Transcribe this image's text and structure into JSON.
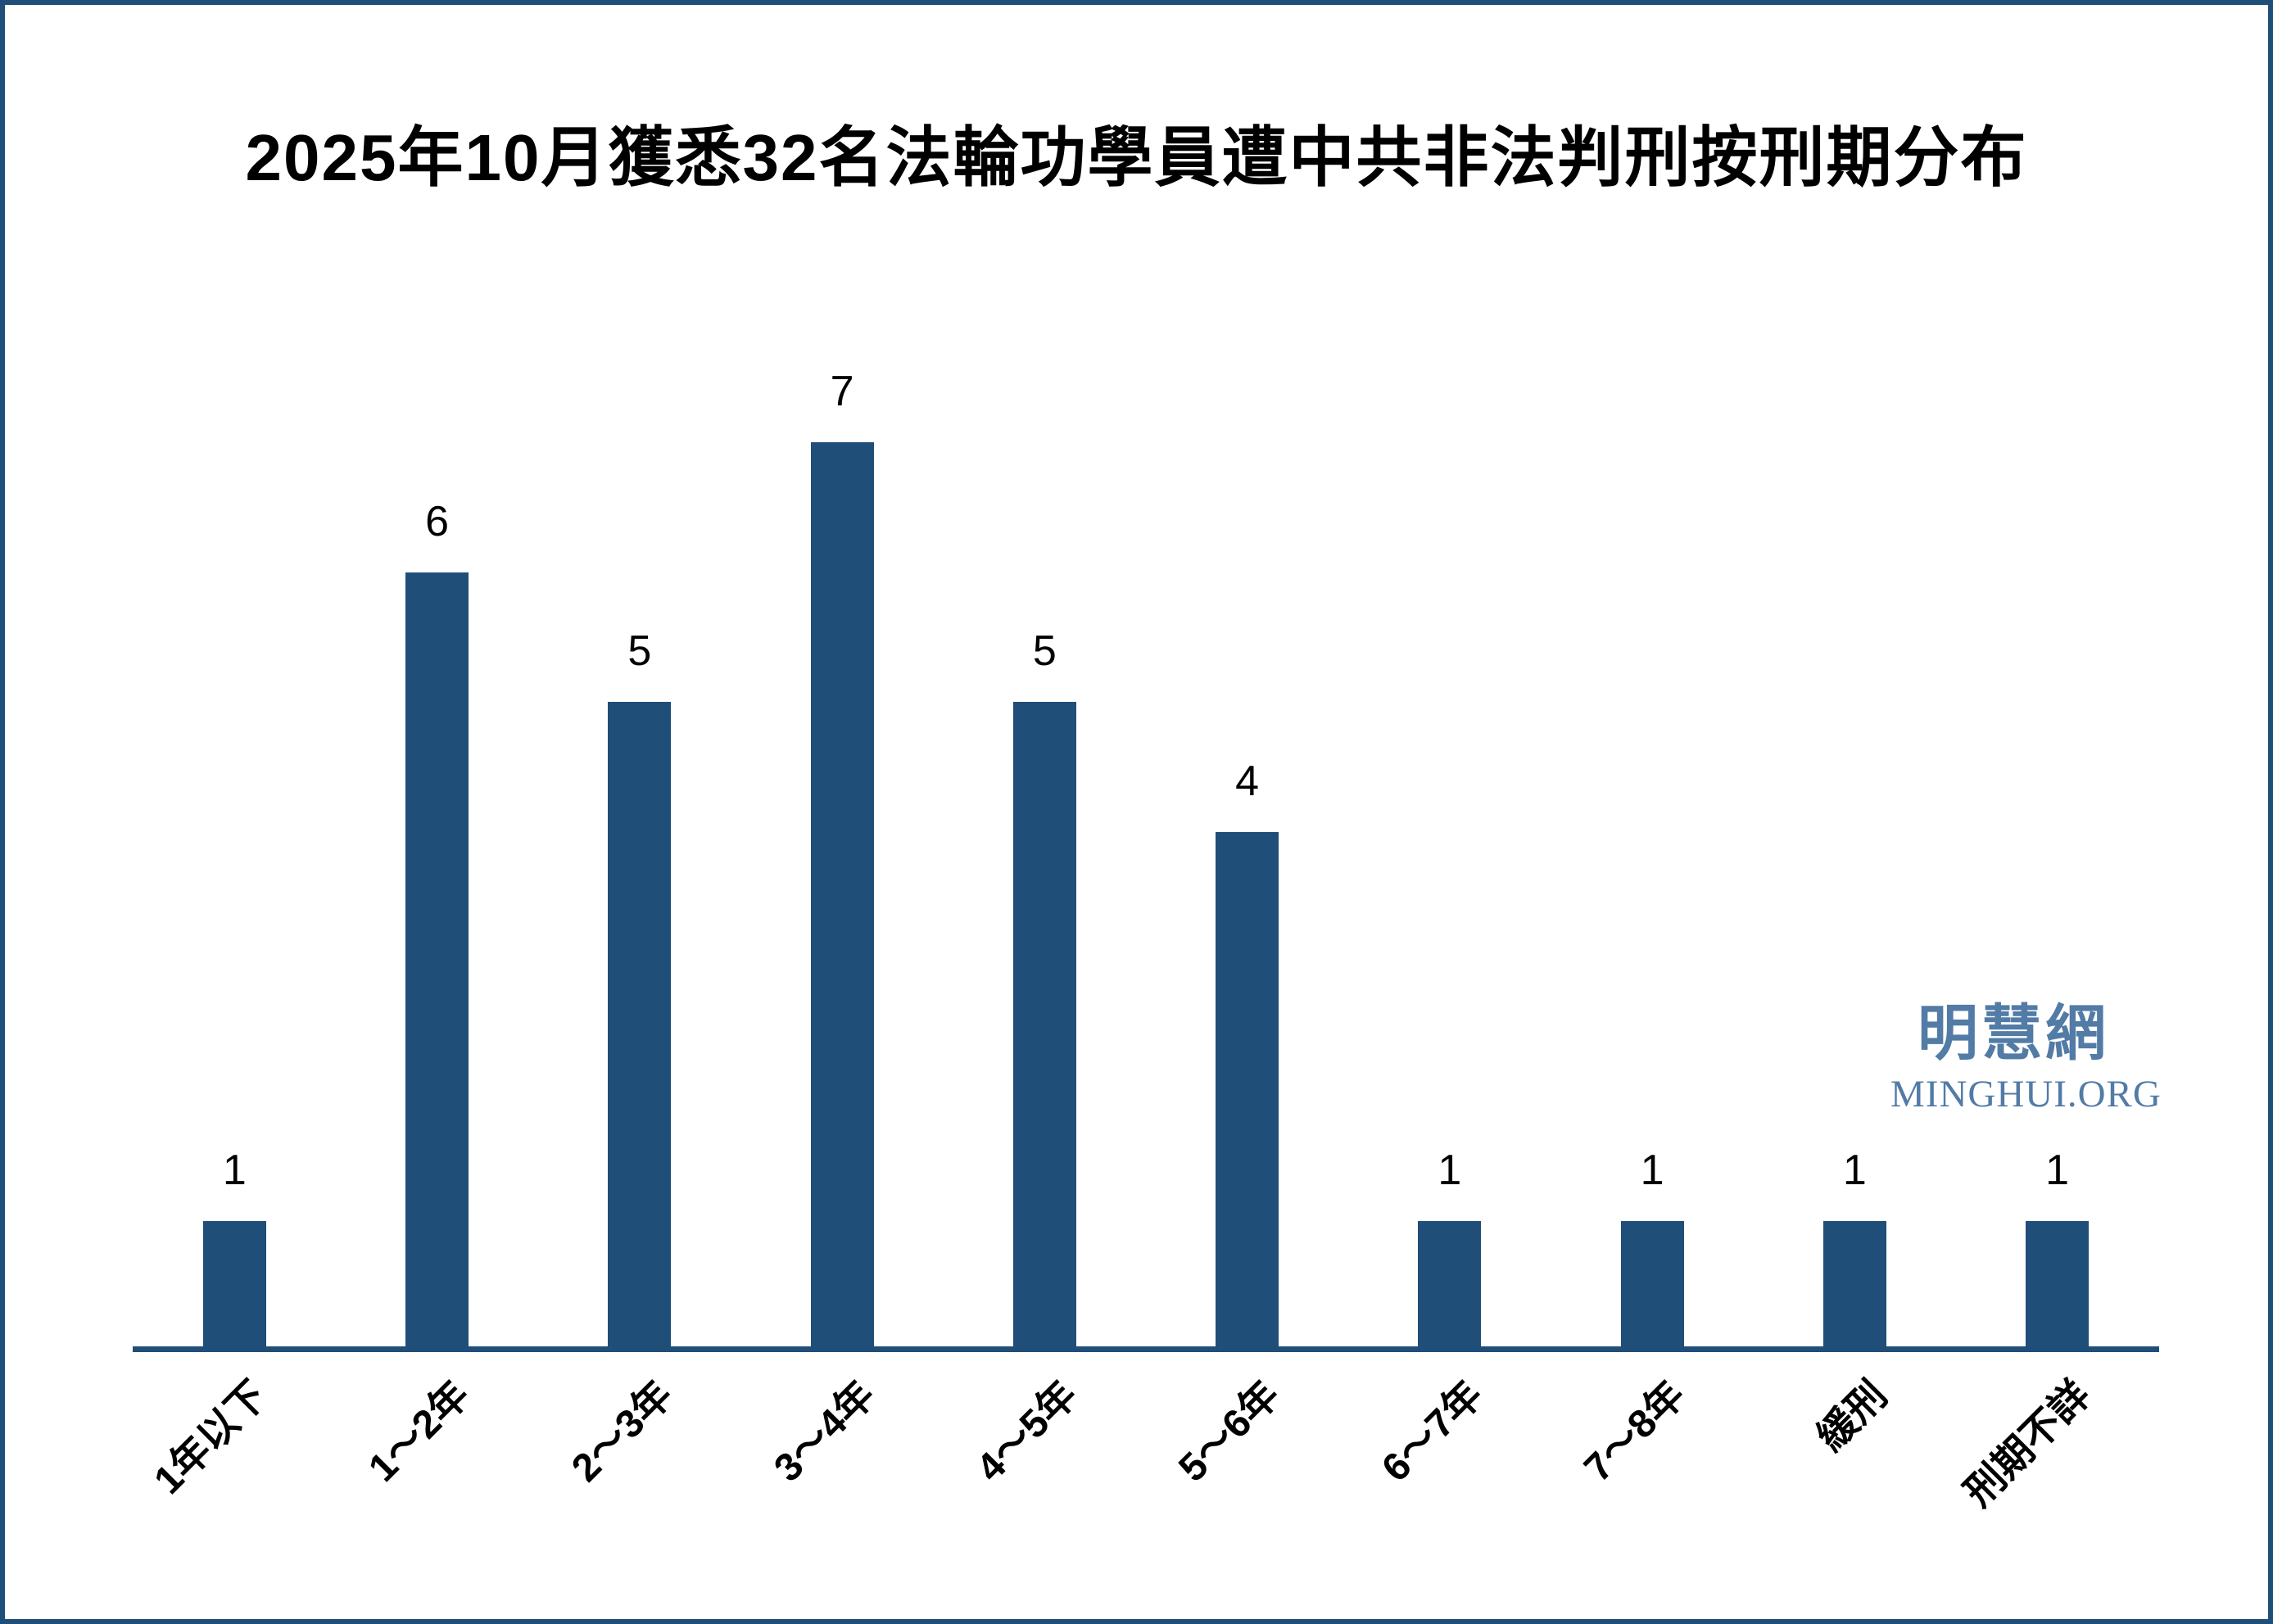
{
  "title": "2025年10月獲悉32名法輪功學員遭中共非法判刑按刑期分布",
  "watermark": {
    "cjk": "明慧網",
    "latin": "MINGHUI.ORG",
    "color": "#527ba6"
  },
  "colors": {
    "bar": "#1f4e79",
    "axis": "#1f4e79",
    "frame_border": "#1f4e79",
    "title_text": "#000000",
    "value_label_text": "#000000"
  },
  "chart_data": {
    "type": "bar",
    "title": "2025年10月獲悉32名法輪功學員遭中共非法判刑按刑期分布",
    "categories": [
      "1年以下",
      "1〜2年",
      "2〜3年",
      "3〜4年",
      "4〜5年",
      "5〜6年",
      "6〜7年",
      "7〜8年",
      "緩刑",
      "刑期不詳"
    ],
    "values": [
      1,
      6,
      5,
      7,
      5,
      4,
      1,
      1,
      1,
      1
    ],
    "value_labels": [
      "1",
      "6",
      "5",
      "7",
      "5",
      "4",
      "1",
      "1",
      "1",
      "1"
    ],
    "xlabel": "",
    "ylabel": "",
    "ylim": [
      0,
      7.5
    ],
    "grid": false,
    "legend_position": "none",
    "x_tick_rotation_deg": 45,
    "bar_color": "#1f4e79",
    "total": 32
  }
}
